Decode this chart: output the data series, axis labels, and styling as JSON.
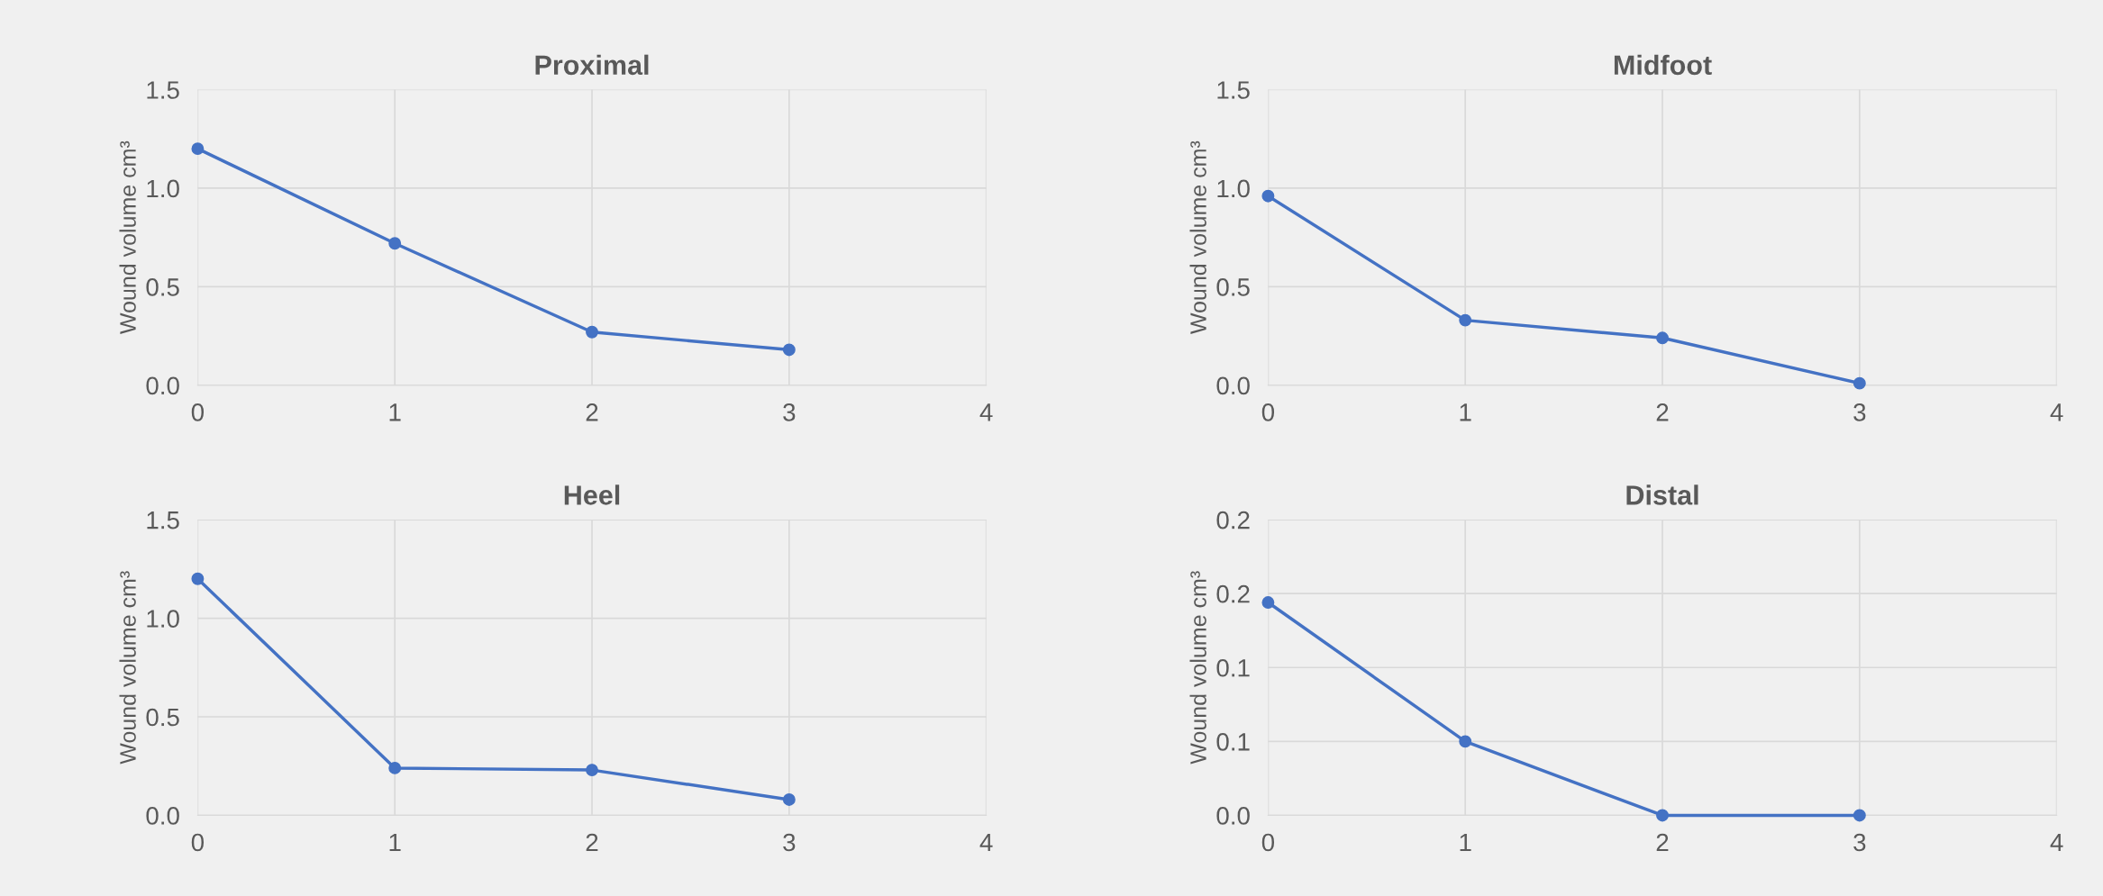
{
  "chart_data": [
    {
      "type": "line",
      "title": "Proximal",
      "ylabel": "Wound volume cm³",
      "x": [
        0,
        1,
        2,
        3
      ],
      "series": [
        {
          "color": "#4472c4",
          "values": [
            1.2,
            0.72,
            0.27,
            0.18
          ]
        }
      ],
      "xlim": [
        0,
        4
      ],
      "xticks": [
        0,
        1,
        2,
        3,
        4
      ],
      "ylim": [
        0,
        1.5
      ],
      "yticks": [
        {
          "value": 0,
          "label": "0.0"
        },
        {
          "value": 0.5,
          "label": "0.5"
        },
        {
          "value": 1,
          "label": "1.0"
        },
        {
          "value": 1.5,
          "label": "1.5"
        }
      ],
      "grid": true,
      "marker": "circle",
      "line_style": "solid"
    },
    {
      "type": "line",
      "title": "Midfoot",
      "ylabel": "Wound volume cm³",
      "x": [
        0,
        1,
        2,
        3
      ],
      "series": [
        {
          "color": "#4472c4",
          "values": [
            0.96,
            0.33,
            0.24,
            0.01
          ]
        }
      ],
      "xlim": [
        0,
        4
      ],
      "xticks": [
        0,
        1,
        2,
        3,
        4
      ],
      "ylim": [
        0,
        1.5
      ],
      "yticks": [
        {
          "value": 0,
          "label": "0.0"
        },
        {
          "value": 0.5,
          "label": "0.5"
        },
        {
          "value": 1,
          "label": "1.0"
        },
        {
          "value": 1.5,
          "label": "1.5"
        }
      ],
      "grid": true,
      "marker": "circle",
      "line_style": "solid"
    },
    {
      "type": "line",
      "title": "Heel",
      "ylabel": "Wound volume cm³",
      "x": [
        0,
        1,
        2,
        3
      ],
      "series": [
        {
          "color": "#4472c4",
          "values": [
            1.2,
            0.24,
            0.23,
            0.08
          ]
        }
      ],
      "xlim": [
        0,
        4
      ],
      "xticks": [
        0,
        1,
        2,
        3,
        4
      ],
      "ylim": [
        0,
        1.5
      ],
      "yticks": [
        {
          "value": 0,
          "label": "0.0"
        },
        {
          "value": 0.5,
          "label": "0.5"
        },
        {
          "value": 1,
          "label": "1.0"
        },
        {
          "value": 1.5,
          "label": "1.5"
        }
      ],
      "grid": true,
      "marker": "circle",
      "line_style": "solid"
    },
    {
      "type": "line",
      "title": "Distal",
      "ylabel": "Wound volume cm³",
      "x": [
        0,
        1,
        2,
        3
      ],
      "series": [
        {
          "color": "#4472c4",
          "values": [
            0.144,
            0.05,
            0,
            0
          ]
        }
      ],
      "xlim": [
        0,
        4
      ],
      "xticks": [
        0,
        1,
        2,
        3,
        4
      ],
      "ylim": [
        0,
        0.2
      ],
      "yticks": [
        {
          "value": 0,
          "label": "0.0"
        },
        {
          "value": 0.05,
          "label": "0.1"
        },
        {
          "value": 0.1,
          "label": "0.1"
        },
        {
          "value": 0.15,
          "label": "0.2"
        },
        {
          "value": 0.2,
          "label": "0.2"
        }
      ],
      "grid": true,
      "marker": "circle",
      "line_style": "solid"
    }
  ]
}
